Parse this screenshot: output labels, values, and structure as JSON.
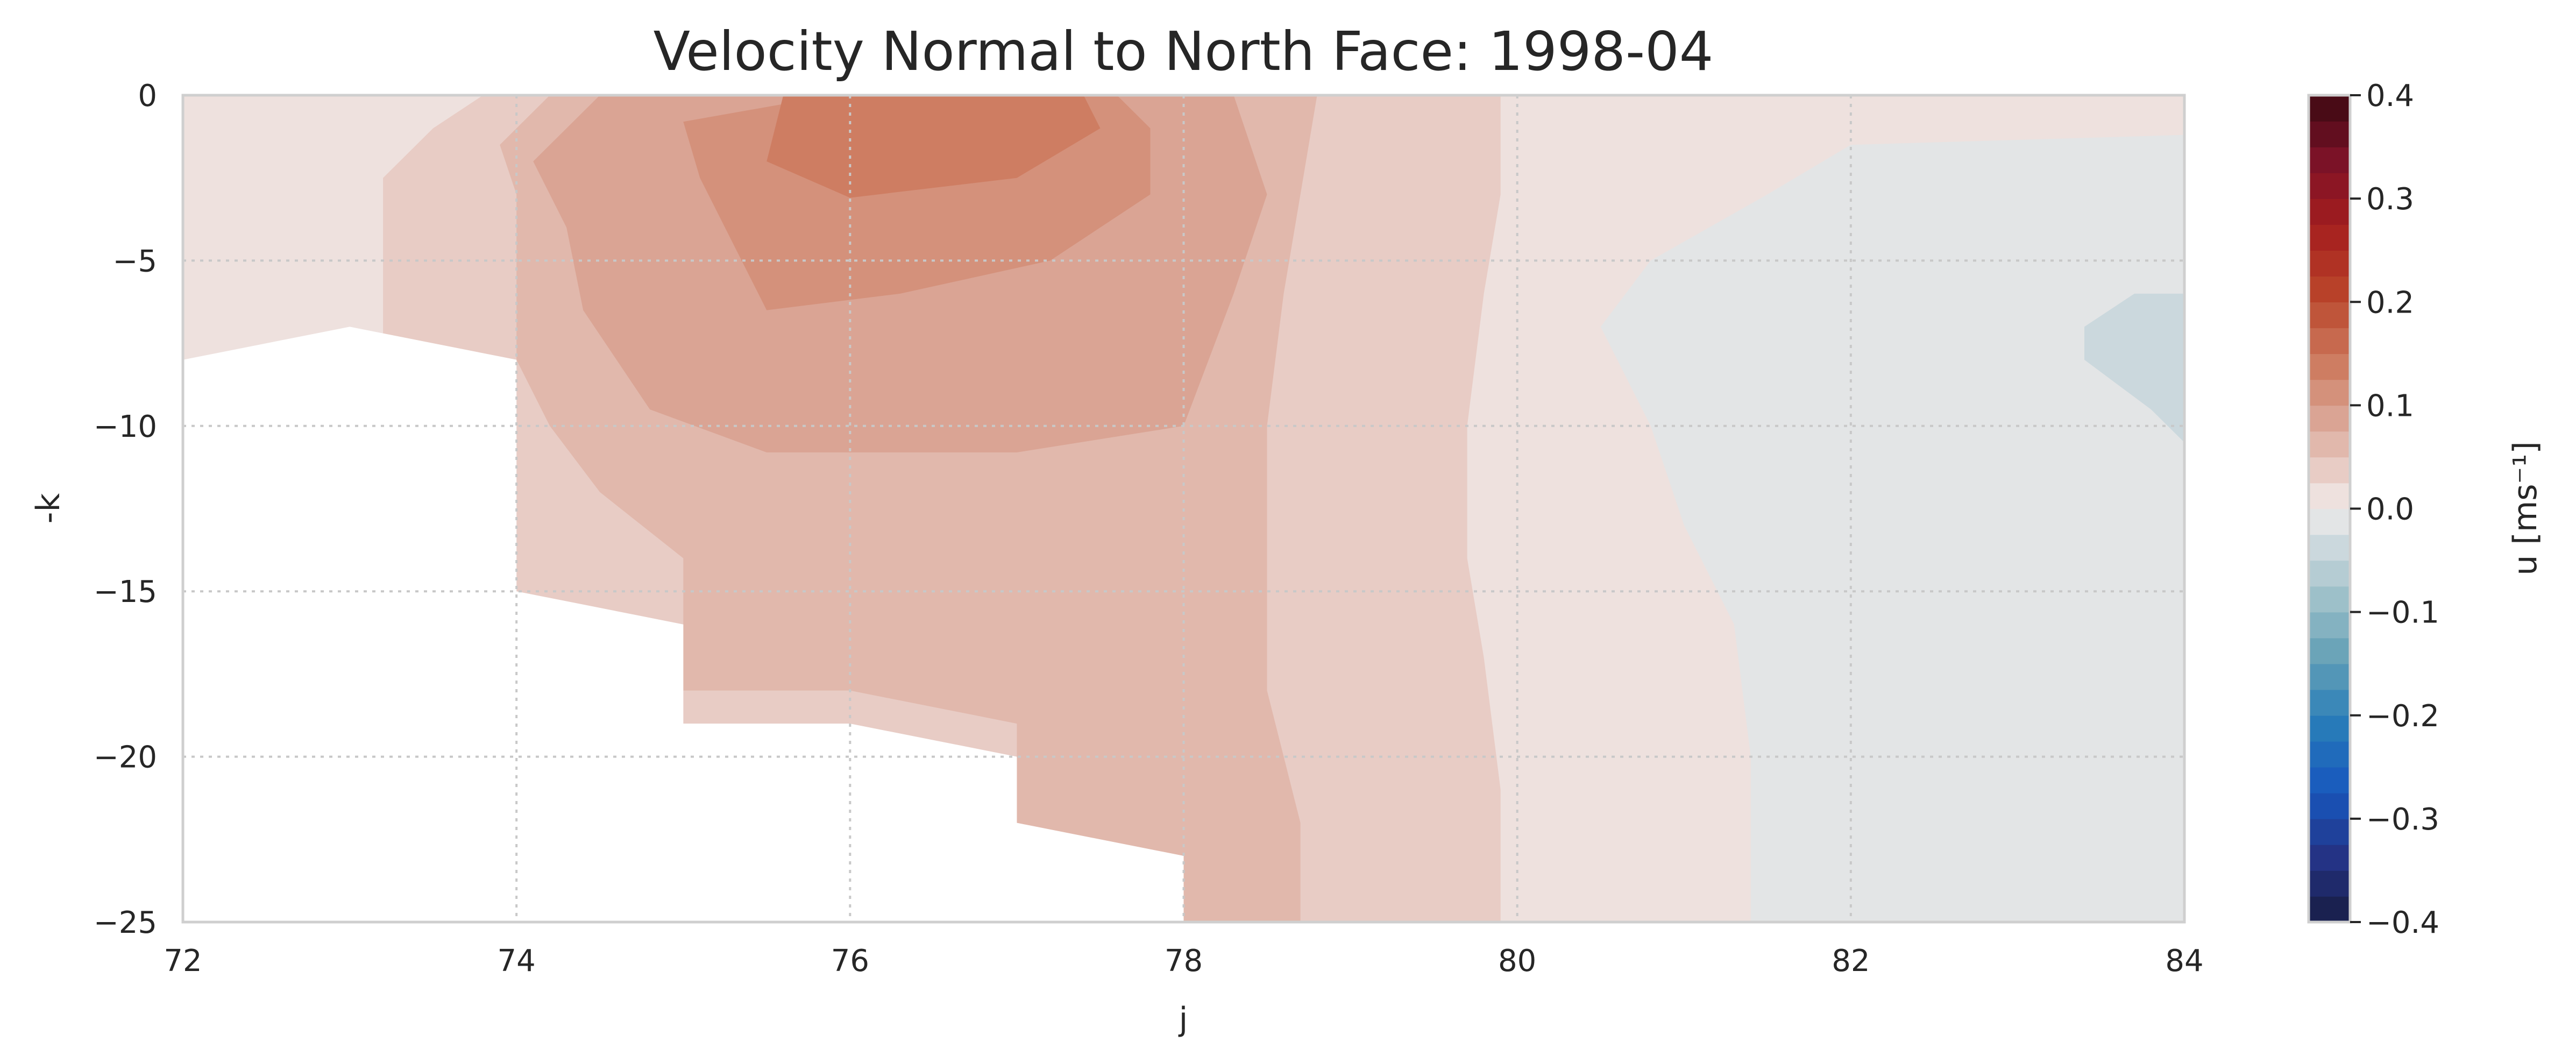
{
  "chart_data": {
    "type": "contour",
    "title": "Velocity Normal to North Face: 1998-04",
    "xlabel": "j",
    "ylabel": "-k",
    "xlim": [
      72,
      84
    ],
    "ylim": [
      -25,
      0
    ],
    "xticks": [
      "72",
      "74",
      "76",
      "78",
      "80",
      "82",
      "84"
    ],
    "yticks": [
      "0",
      "−5",
      "−10",
      "−15",
      "−20",
      "−25"
    ],
    "grid": true,
    "colorbar": {
      "label": "u [ms⁻¹]",
      "vmin": -0.4,
      "vmax": 0.4,
      "levels": 32,
      "ticks": [
        "0.4",
        "0.3",
        "0.2",
        "0.1",
        "0.0",
        "−0.1",
        "−0.2",
        "−0.3",
        "−0.4"
      ],
      "colormap": "balance (blue-white-red)"
    },
    "land_mask_boundary": [
      [
        72,
        -8
      ],
      [
        73,
        -7
      ],
      [
        74,
        -8
      ],
      [
        74,
        -15
      ],
      [
        75,
        -16
      ],
      [
        75,
        -19
      ],
      [
        76,
        -19
      ],
      [
        77,
        -20
      ],
      [
        77,
        -22
      ],
      [
        78,
        -23
      ],
      [
        78,
        -25
      ]
    ],
    "contour_regions": [
      {
        "level": 0.0125,
        "polygon": [
          [
            72,
            0
          ],
          [
            84,
            0
          ],
          [
            84,
            -25
          ],
          [
            72,
            -25
          ]
        ]
      },
      {
        "level": -0.0125,
        "polygon": [
          [
            84,
            -1.2
          ],
          [
            82,
            -1.5
          ],
          [
            81.5,
            -3
          ],
          [
            80.8,
            -5
          ],
          [
            80.5,
            -7
          ],
          [
            80.8,
            -10
          ],
          [
            81,
            -13
          ],
          [
            81.3,
            -16
          ],
          [
            81.4,
            -20
          ],
          [
            81.4,
            -25
          ],
          [
            84,
            -25
          ]
        ]
      },
      {
        "level": -0.0375,
        "polygon": [
          [
            84,
            -6
          ],
          [
            83.7,
            -6
          ],
          [
            83.4,
            -7
          ],
          [
            83.4,
            -8
          ],
          [
            83.8,
            -9.5
          ],
          [
            84,
            -10.5
          ]
        ]
      },
      {
        "level": 0.0375,
        "polygon": [
          [
            73.8,
            0
          ],
          [
            73.5,
            -1
          ],
          [
            73.2,
            -2.5
          ],
          [
            73.2,
            -7.2
          ],
          [
            74,
            -8
          ],
          [
            74,
            -15
          ],
          [
            75,
            -16
          ],
          [
            75,
            -19
          ],
          [
            76,
            -19
          ],
          [
            77,
            -20
          ],
          [
            77,
            -22
          ],
          [
            78,
            -23
          ],
          [
            78,
            -25
          ],
          [
            79.9,
            -25
          ],
          [
            79.9,
            -21
          ],
          [
            79.8,
            -17
          ],
          [
            79.7,
            -14
          ],
          [
            79.7,
            -10
          ],
          [
            79.8,
            -6
          ],
          [
            79.9,
            -3
          ],
          [
            79.9,
            0
          ]
        ]
      },
      {
        "level": 0.0625,
        "polygon": [
          [
            74.2,
            0
          ],
          [
            73.9,
            -1.5
          ],
          [
            74,
            -3
          ],
          [
            74,
            -8
          ],
          [
            74.2,
            -10
          ],
          [
            74.5,
            -12
          ],
          [
            75,
            -14
          ],
          [
            75,
            -18
          ],
          [
            76,
            -18
          ],
          [
            77,
            -19
          ],
          [
            77,
            -22
          ],
          [
            78,
            -23
          ],
          [
            78,
            -25
          ],
          [
            78.7,
            -25
          ],
          [
            78.7,
            -22
          ],
          [
            78.5,
            -18
          ],
          [
            78.5,
            -14
          ],
          [
            78.5,
            -10
          ],
          [
            78.6,
            -6
          ],
          [
            78.7,
            -3
          ],
          [
            78.8,
            0
          ]
        ]
      },
      {
        "level": 0.0875,
        "polygon": [
          [
            74.5,
            0
          ],
          [
            74.1,
            -2
          ],
          [
            74.3,
            -4
          ],
          [
            74.4,
            -6.5
          ],
          [
            74.8,
            -9.5
          ],
          [
            75.5,
            -10.8
          ],
          [
            77,
            -10.8
          ],
          [
            78,
            -10
          ],
          [
            78.3,
            -6
          ],
          [
            78.5,
            -3
          ],
          [
            78.3,
            0
          ]
        ]
      },
      {
        "level": 0.1125,
        "polygon": [
          [
            75,
            -0.8
          ],
          [
            75.1,
            -2.5
          ],
          [
            75.3,
            -4.5
          ],
          [
            75.5,
            -6.5
          ],
          [
            76.3,
            -6
          ],
          [
            77.2,
            -5
          ],
          [
            77.8,
            -3
          ],
          [
            77.8,
            -1
          ],
          [
            77.6,
            0
          ],
          [
            75.9,
            0
          ]
        ]
      },
      {
        "level": 0.1375,
        "polygon": [
          [
            75.6,
            0
          ],
          [
            75.5,
            -2
          ],
          [
            76,
            -3.1
          ],
          [
            77,
            -2.5
          ],
          [
            77.5,
            -1
          ],
          [
            77.4,
            0
          ]
        ]
      }
    ]
  }
}
